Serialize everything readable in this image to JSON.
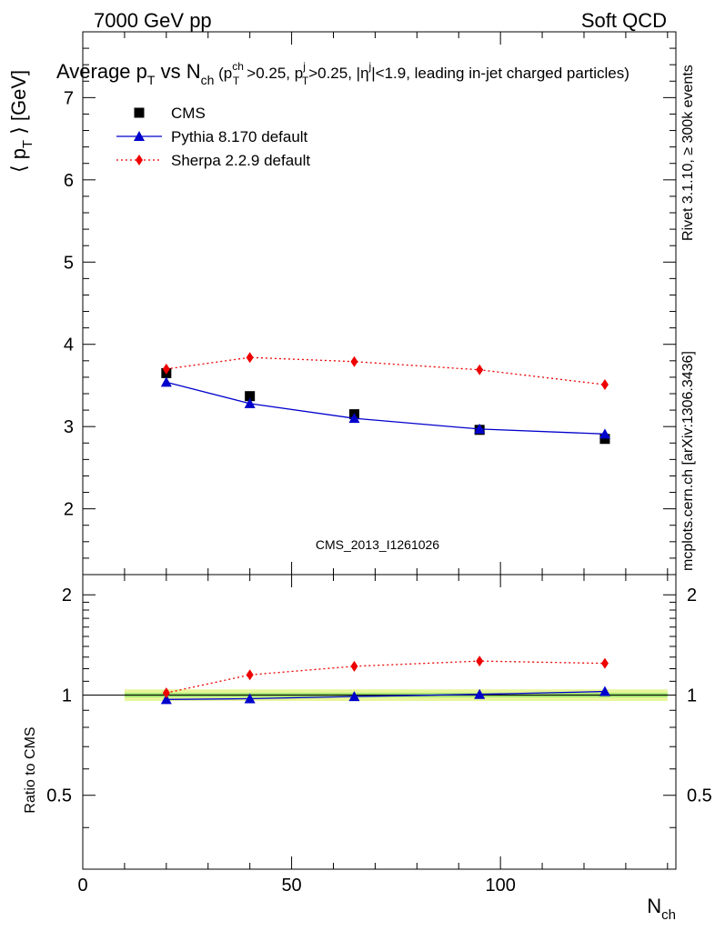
{
  "header": {
    "left": "7000 GeV pp",
    "right": "Soft QCD"
  },
  "title": "Average p_T vs N_ch (p_T^ch>0.25, p_T^j>0.25, |η^j|<1.9, leading in-jet charged particles)",
  "side_labels": {
    "rivet": "Rivet 3.1.10, ≥ 300k events",
    "mcplots": "mcplots.cern.ch [arXiv:1306.3436]"
  },
  "watermark": "CMS_2013_I1261026",
  "colors": {
    "cms": "#000000",
    "pythia": "#0000cc",
    "sherpa": "#ee0000",
    "band_outer": "#e8f59a",
    "band_inner": "#9fe070"
  },
  "chart_data": [
    {
      "type": "line",
      "panel": "main",
      "ylabel": "⟨ p_T ⟩ [GeV]",
      "xlim": [
        0,
        142
      ],
      "ylim": [
        1.2,
        7.8
      ],
      "yticks": [
        2,
        3,
        4,
        5,
        6,
        7
      ],
      "legend_position": "top-left",
      "series": [
        {
          "name": "CMS",
          "style": "marker",
          "marker": "square",
          "x": [
            20,
            40,
            65,
            95,
            125
          ],
          "y": [
            3.65,
            3.37,
            3.15,
            2.96,
            2.85
          ]
        },
        {
          "name": "Pythia 8.170 default",
          "style": "line",
          "marker": "triangle",
          "x": [
            20,
            40,
            65,
            95,
            125
          ],
          "y": [
            3.54,
            3.28,
            3.1,
            2.97,
            2.91
          ],
          "yerr": [
            0.02,
            0.02,
            0.02,
            0.02,
            0.04
          ]
        },
        {
          "name": "Sherpa 2.2.9 default",
          "style": "dotted",
          "marker": "diamond",
          "x": [
            20,
            40,
            65,
            95,
            125
          ],
          "y": [
            3.7,
            3.84,
            3.79,
            3.69,
            3.51
          ],
          "yerr": [
            0.02,
            0.02,
            0.02,
            0.03,
            0.05
          ]
        }
      ]
    },
    {
      "type": "line",
      "panel": "ratio",
      "xlabel": "N_ch",
      "ylabel": "Ratio to CMS",
      "xlim": [
        0,
        142
      ],
      "ylim": [
        0.3,
        2.3
      ],
      "yticks": [
        0.5,
        1,
        2
      ],
      "xticks": [
        0,
        50,
        100
      ],
      "band": {
        "x": [
          10,
          140
        ],
        "outer": [
          0.96,
          1.04
        ],
        "inner": [
          0.985,
          1.015
        ]
      },
      "series": [
        {
          "name": "Pythia 8.170 default",
          "style": "line",
          "marker": "triangle",
          "x": [
            20,
            40,
            65,
            95,
            125
          ],
          "y": [
            0.97,
            0.975,
            0.99,
            1.005,
            1.025
          ]
        },
        {
          "name": "Sherpa 2.2.9 default",
          "style": "dotted",
          "marker": "diamond",
          "x": [
            20,
            40,
            65,
            95,
            125
          ],
          "y": [
            1.015,
            1.15,
            1.22,
            1.265,
            1.245
          ]
        }
      ]
    }
  ]
}
